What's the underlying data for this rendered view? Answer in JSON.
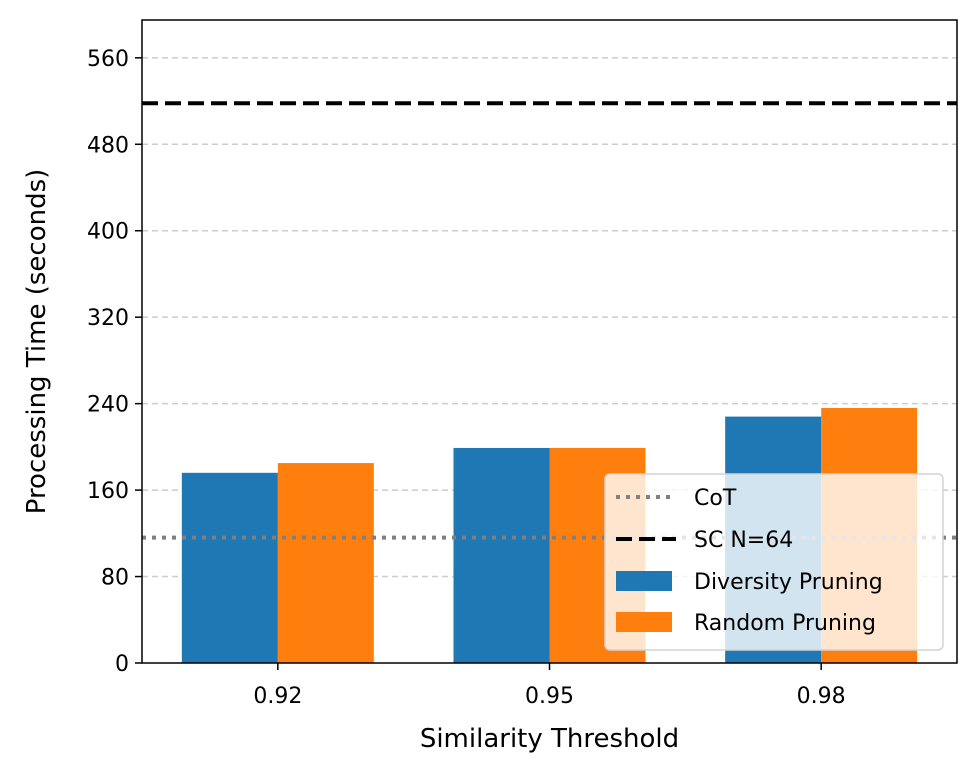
{
  "chart_data": {
    "type": "bar",
    "xlabel": "Similarity Threshold",
    "ylabel": "Processing Time (seconds)",
    "categories": [
      "0.92",
      "0.95",
      "0.98"
    ],
    "ylim": [
      0,
      595
    ],
    "yticks": [
      0,
      80,
      160,
      240,
      320,
      400,
      480,
      560
    ],
    "grid": "horizontal dashed",
    "series": [
      {
        "name": "Diversity Pruning",
        "color": "#1f77b4",
        "values": [
          176,
          199,
          228
        ]
      },
      {
        "name": "Random Pruning",
        "color": "#ff7f0e",
        "values": [
          185,
          199,
          236
        ]
      }
    ],
    "reference_lines": [
      {
        "name": "CoT",
        "value": 116,
        "style": "dotted",
        "color": "#808080"
      },
      {
        "name": "SC N=64",
        "value": 518,
        "style": "dashed",
        "color": "#000000"
      }
    ],
    "legend": {
      "placement": "lower-right",
      "entries": [
        "CoT",
        "SC N=64",
        "Diversity Pruning",
        "Random Pruning"
      ]
    }
  }
}
